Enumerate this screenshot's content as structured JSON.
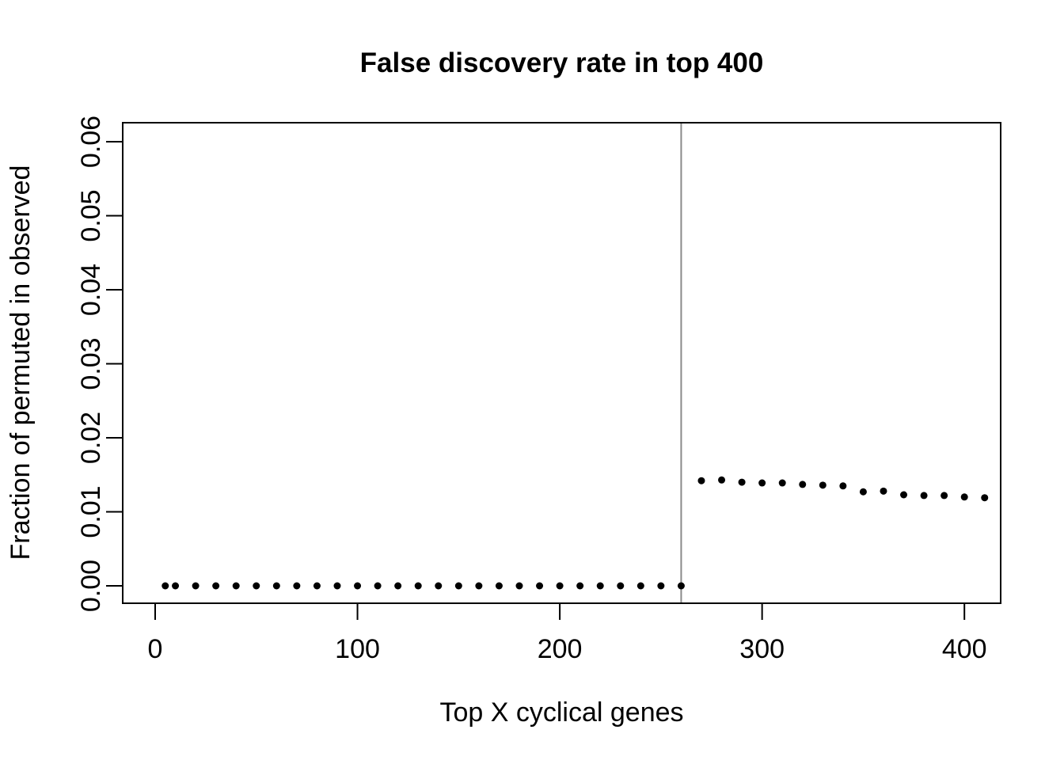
{
  "figure": {
    "title": "False discovery rate in top 400",
    "xlabel": "Top X cyclical genes",
    "ylabel": "Fraction of permuted in observed"
  },
  "chart_data": {
    "type": "scatter",
    "title": "False discovery rate in top 400",
    "xlabel": "Top X cyclical genes",
    "ylabel": "Fraction of permuted in observed",
    "x_ticks": [
      0,
      100,
      200,
      300,
      400
    ],
    "x_tick_labels": [
      "0",
      "100",
      "200",
      "300",
      "400"
    ],
    "y_ticks": [
      0.0,
      0.01,
      0.02,
      0.03,
      0.04,
      0.05,
      0.06
    ],
    "y_tick_labels": [
      "0.00",
      "0.01",
      "0.02",
      "0.03",
      "0.04",
      "0.05",
      "0.06"
    ],
    "xlim": [
      -16,
      418
    ],
    "ylim": [
      -0.0024,
      0.0626
    ],
    "grid": false,
    "legend": false,
    "point_color": "#000000",
    "axis_color": "#000000",
    "background": "#ffffff",
    "vline": {
      "x": 260,
      "color": "#8a8a8a"
    },
    "points": [
      [
        5,
        0
      ],
      [
        10,
        0
      ],
      [
        20,
        0
      ],
      [
        30,
        0
      ],
      [
        40,
        0
      ],
      [
        50,
        0
      ],
      [
        60,
        0
      ],
      [
        70,
        0
      ],
      [
        80,
        0
      ],
      [
        90,
        0
      ],
      [
        100,
        0
      ],
      [
        110,
        0
      ],
      [
        120,
        0
      ],
      [
        130,
        0
      ],
      [
        140,
        0
      ],
      [
        150,
        0
      ],
      [
        160,
        0
      ],
      [
        170,
        0
      ],
      [
        180,
        0
      ],
      [
        190,
        0
      ],
      [
        200,
        0
      ],
      [
        210,
        0
      ],
      [
        220,
        0
      ],
      [
        230,
        0
      ],
      [
        240,
        0
      ],
      [
        250,
        0
      ],
      [
        260,
        0
      ],
      [
        270,
        0.0142
      ],
      [
        280,
        0.0143
      ],
      [
        290,
        0.014
      ],
      [
        300,
        0.0139
      ],
      [
        310,
        0.0139
      ],
      [
        320,
        0.0137
      ],
      [
        330,
        0.0136
      ],
      [
        340,
        0.0135
      ],
      [
        350,
        0.0127
      ],
      [
        360,
        0.0128
      ],
      [
        370,
        0.0123
      ],
      [
        380,
        0.0122
      ],
      [
        390,
        0.0122
      ],
      [
        400,
        0.012
      ],
      [
        410,
        0.0119
      ]
    ]
  }
}
